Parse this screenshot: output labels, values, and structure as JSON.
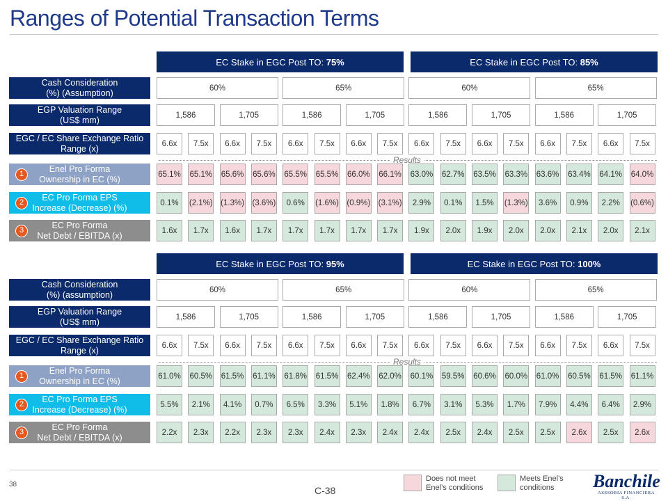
{
  "title": "Ranges of Potential Transaction Terms",
  "results_label": "Results",
  "page_number": "38",
  "center_page": "C-38",
  "legend": {
    "not_meet": "Does not meet\nEnel’s conditions",
    "meets": "Meets Enel’s\nconditions"
  },
  "logo": {
    "name": "Banchile",
    "sub": "ASESORIA FINANCIERA S.A."
  },
  "colors": {
    "navy": "#0b2a6b",
    "pink": "#f6d7dc",
    "green": "#d4e8dc",
    "badge": "#e7581f"
  },
  "panels": [
    {
      "headers": [
        {
          "prefix": "EC Stake in EGC Post TO: ",
          "bold": "75%"
        },
        {
          "prefix": "EC Stake in EGC Post TO: ",
          "bold": "85%"
        }
      ],
      "labels": {
        "cash": "Cash Consideration\n(%) (Assumption)",
        "valuation": "EGP Valuation Range\n(US$ mm)",
        "exchange": "EGC / EC Share Exchange Ratio\nRange (x)",
        "ownership": "Enel Pro Forma\nOwnership in EC (%)",
        "eps": "EC Pro Forma EPS\nIncrease (Decrease) (%)",
        "debt": "EC Pro Forma\nNet Debt / EBITDA (x)"
      },
      "cash": [
        "60%",
        "65%",
        "60%",
        "65%"
      ],
      "valuation": [
        "1,586",
        "1,705",
        "1,586",
        "1,705",
        "1,586",
        "1,705",
        "1,586",
        "1,705"
      ],
      "exchange": [
        "6.6x",
        "7.5x",
        "6.6x",
        "7.5x",
        "6.6x",
        "7.5x",
        "6.6x",
        "7.5x",
        "6.6x",
        "7.5x",
        "6.6x",
        "7.5x",
        "6.6x",
        "7.5x",
        "6.6x",
        "7.5x"
      ],
      "ownership": [
        "65.1%",
        "65.1%",
        "65.6%",
        "65.6%",
        "65.5%",
        "65.5%",
        "66.0%",
        "66.1%",
        "63.0%",
        "62.7%",
        "63.5%",
        "63.3%",
        "63.6%",
        "63.4%",
        "64.1%",
        "64.0%"
      ],
      "ownership_ok": [
        0,
        0,
        0,
        0,
        0,
        0,
        0,
        0,
        1,
        1,
        1,
        1,
        1,
        1,
        1,
        0
      ],
      "eps": [
        "0.1%",
        "(2.1%)",
        "(1.3%)",
        "(3.6%)",
        "0.6%",
        "(1.6%)",
        "(0.9%)",
        "(3.1%)",
        "2.9%",
        "0.1%",
        "1.5%",
        "(1.3%)",
        "3.6%",
        "0.9%",
        "2.2%",
        "(0.6%)"
      ],
      "eps_ok": [
        1,
        0,
        0,
        0,
        1,
        0,
        0,
        0,
        1,
        1,
        1,
        0,
        1,
        1,
        1,
        0
      ],
      "debt": [
        "1.6x",
        "1.7x",
        "1.6x",
        "1.7x",
        "1.7x",
        "1.7x",
        "1.7x",
        "1.7x",
        "1.9x",
        "2.0x",
        "1.9x",
        "2.0x",
        "2.0x",
        "2.1x",
        "2.0x",
        "2.1x"
      ],
      "debt_ok": [
        1,
        1,
        1,
        1,
        1,
        1,
        1,
        1,
        1,
        1,
        1,
        1,
        1,
        1,
        1,
        1
      ]
    },
    {
      "headers": [
        {
          "prefix": "EC Stake in EGC Post TO: ",
          "bold": "95%"
        },
        {
          "prefix": "EC Stake in EGC Post TO: ",
          "bold": "100%"
        }
      ],
      "labels": {
        "cash": "Cash Consideration\n(%) (assumption)",
        "valuation": "EGP Valuation Range\n(US$ mm)",
        "exchange": "EGC / EC Share Exchange Ratio\nRange (x)",
        "ownership": "Enel Pro Forma\nOwnership in EC (%)",
        "eps": "EC Pro Forma EPS\nIncrease (Decrease) (%)",
        "debt": "EC Pro Forma\nNet Debt / EBITDA (x)"
      },
      "cash": [
        "60%",
        "65%",
        "60%",
        "65%"
      ],
      "valuation": [
        "1,586",
        "1,705",
        "1,586",
        "1,705",
        "1,586",
        "1,705",
        "1,586",
        "1,705"
      ],
      "exchange": [
        "6.6x",
        "7.5x",
        "6.6x",
        "7.5x",
        "6.6x",
        "7.5x",
        "6.6x",
        "7.5x",
        "6.6x",
        "7.5x",
        "6.6x",
        "7.5x",
        "6.6x",
        "7.5x",
        "6.6x",
        "7.5x"
      ],
      "ownership": [
        "61.0%",
        "60.5%",
        "61.5%",
        "61.1%",
        "61.8%",
        "61.5%",
        "62.4%",
        "62.0%",
        "60.1%",
        "59.5%",
        "60.6%",
        "60.0%",
        "61.0%",
        "60.5%",
        "61.5%",
        "61.1%"
      ],
      "ownership_ok": [
        1,
        1,
        1,
        1,
        1,
        1,
        1,
        1,
        1,
        1,
        1,
        1,
        1,
        1,
        1,
        1
      ],
      "eps": [
        "5.5%",
        "2.1%",
        "4.1%",
        "0.7%",
        "6.5%",
        "3.3%",
        "5.1%",
        "1.8%",
        "6.7%",
        "3.1%",
        "5.3%",
        "1.7%",
        "7.9%",
        "4.4%",
        "6.4%",
        "2.9%"
      ],
      "eps_ok": [
        1,
        1,
        1,
        1,
        1,
        1,
        1,
        1,
        1,
        1,
        1,
        1,
        1,
        1,
        1,
        1
      ],
      "debt": [
        "2.2x",
        "2.3x",
        "2.2x",
        "2.3x",
        "2.3x",
        "2.4x",
        "2.3x",
        "2.4x",
        "2.4x",
        "2.5x",
        "2.4x",
        "2.5x",
        "2.5x",
        "2.6x",
        "2.5x",
        "2.6x"
      ],
      "debt_ok": [
        1,
        1,
        1,
        1,
        1,
        1,
        1,
        1,
        1,
        1,
        1,
        1,
        1,
        0,
        1,
        0
      ]
    }
  ]
}
